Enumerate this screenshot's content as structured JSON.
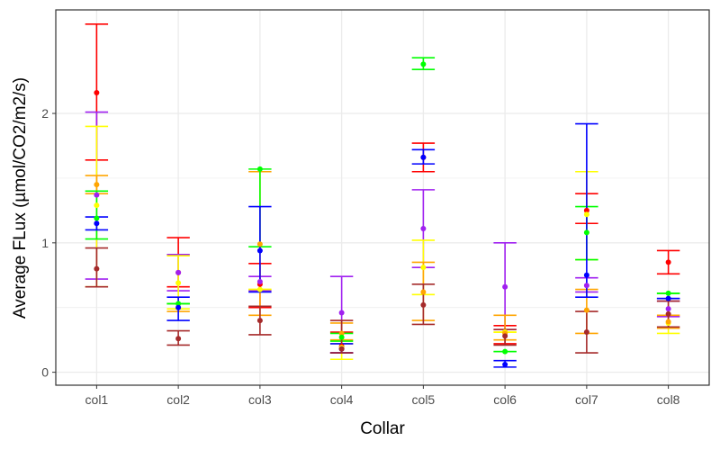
{
  "chart_data": {
    "type": "scatter",
    "subtype": "point-with-errorbars",
    "xlabel": "Collar",
    "ylabel": "Average FLux (µmol/CO2/m2/s)",
    "categories": [
      "col1",
      "col2",
      "col3",
      "col4",
      "col5",
      "col6",
      "col7",
      "col8"
    ],
    "ylim": [
      -0.1,
      2.8
    ],
    "yticks": [
      0,
      1,
      2
    ],
    "ytick_labels": [
      "0",
      "1",
      "2"
    ],
    "grid": true,
    "legend": "none",
    "background": "#ffffff",
    "panel_border_color": "#333333",
    "grid_color": "#ebebeb",
    "series": [
      {
        "color": "#FF0000",
        "values": [
          2.16,
          0.77,
          0.68,
          0.2,
          1.66,
          0.31,
          1.25,
          0.85
        ],
        "lower": [
          1.64,
          0.66,
          0.5,
          0.15,
          1.55,
          0.22,
          1.15,
          0.76
        ],
        "upper": [
          2.69,
          1.04,
          0.84,
          0.31,
          1.77,
          0.36,
          1.38,
          0.94
        ]
      },
      {
        "color": "#A020F0",
        "values": [
          1.37,
          0.77,
          0.7,
          0.46,
          1.11,
          0.66,
          0.67,
          0.49
        ],
        "lower": [
          0.72,
          0.63,
          0.63,
          0.15,
          0.81,
          0.33,
          0.62,
          0.43
        ],
        "upper": [
          2.01,
          0.91,
          0.74,
          0.74,
          1.41,
          1.0,
          0.73,
          0.55
        ]
      },
      {
        "color": "#FFFF00",
        "values": [
          1.29,
          0.69,
          0.64,
          0.19,
          0.81,
          0.31,
          1.22,
          0.38
        ],
        "lower": [
          0.66,
          0.49,
          0.64,
          0.1,
          0.6,
          0.31,
          0.87,
          0.3
        ],
        "upper": [
          1.9,
          0.9,
          0.64,
          0.22,
          1.02,
          0.31,
          1.55,
          0.61
        ]
      },
      {
        "color": "#FFA500",
        "values": [
          1.45,
          0.5,
          0.99,
          0.3,
          0.62,
          0.3,
          0.48,
          0.39
        ],
        "lower": [
          1.38,
          0.47,
          0.44,
          0.25,
          0.4,
          0.25,
          0.3,
          0.34
        ],
        "upper": [
          1.52,
          0.53,
          1.55,
          0.38,
          0.85,
          0.44,
          0.64,
          0.44
        ]
      },
      {
        "color": "#00FF00",
        "values": [
          1.19,
          0.53,
          1.57,
          0.27,
          2.38,
          0.16,
          1.08,
          0.61
        ],
        "lower": [
          1.03,
          0.53,
          0.97,
          0.24,
          2.34,
          0.16,
          0.87,
          0.61
        ],
        "upper": [
          1.4,
          0.53,
          1.57,
          0.3,
          2.43,
          0.16,
          1.28,
          0.61
        ]
      },
      {
        "color": "#0000FF",
        "values": [
          1.15,
          0.5,
          0.94,
          0.18,
          1.66,
          0.06,
          0.75,
          0.57
        ],
        "lower": [
          1.1,
          0.4,
          0.62,
          0.15,
          1.61,
          0.04,
          0.58,
          0.57
        ],
        "upper": [
          1.2,
          0.58,
          1.28,
          0.22,
          1.72,
          0.09,
          1.92,
          0.57
        ]
      },
      {
        "color": "#A52A2A",
        "values": [
          0.8,
          0.26,
          0.4,
          0.18,
          0.52,
          0.28,
          0.31,
          0.45
        ],
        "lower": [
          0.66,
          0.21,
          0.29,
          0.15,
          0.37,
          0.21,
          0.15,
          0.35
        ],
        "upper": [
          0.96,
          0.32,
          0.51,
          0.4,
          0.68,
          0.33,
          0.47,
          0.55
        ]
      }
    ]
  }
}
